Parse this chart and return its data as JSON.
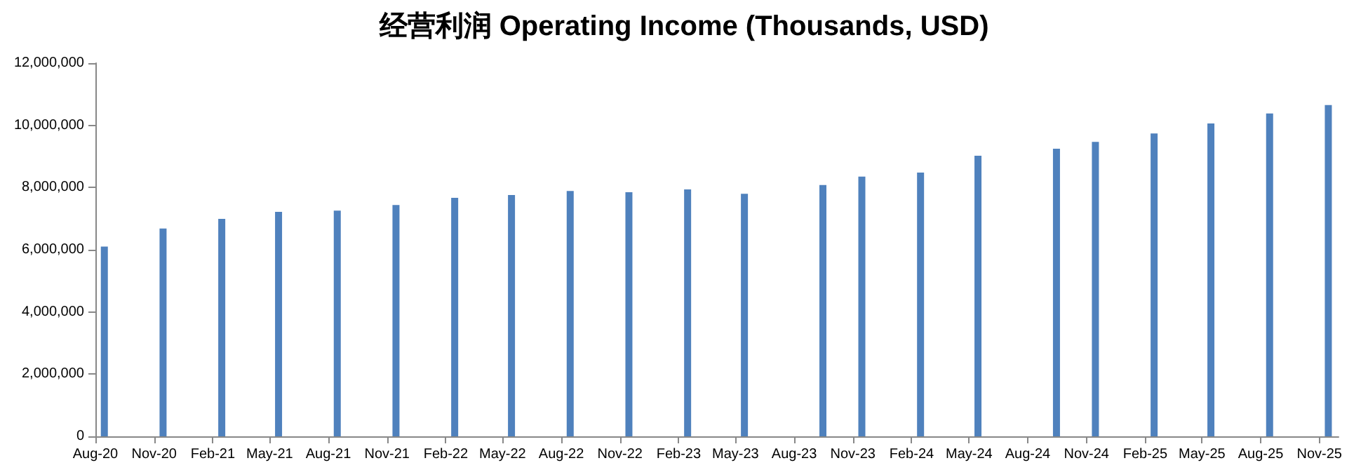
{
  "chart_data": {
    "type": "bar",
    "title": "经营利润 Operating Income (Thousands, USD)",
    "x": [
      "2020-08-15",
      "2020-11-15",
      "2021-02-15",
      "2021-05-15",
      "2021-08-15",
      "2021-11-15",
      "2022-02-15",
      "2022-05-15",
      "2022-08-15",
      "2022-11-15",
      "2023-02-15",
      "2023-05-15",
      "2023-09-15",
      "2023-11-15",
      "2024-02-15",
      "2024-05-15",
      "2024-09-15",
      "2024-11-15",
      "2025-02-15",
      "2025-05-15",
      "2025-08-15",
      "2025-11-15"
    ],
    "values": [
      6100000,
      6680000,
      6990000,
      7220000,
      7260000,
      7440000,
      7670000,
      7760000,
      7890000,
      7850000,
      7940000,
      7800000,
      8080000,
      8350000,
      8480000,
      9020000,
      9250000,
      9470000,
      9740000,
      10060000,
      10380000,
      10650000
    ],
    "color": "#4f81bd",
    "xlim": [
      "2020-08-01",
      "2025-12-01"
    ],
    "xticks": [
      {
        "value": "2020-08-01",
        "label": "Aug-20"
      },
      {
        "value": "2020-11-01",
        "label": "Nov-20"
      },
      {
        "value": "2021-02-01",
        "label": "Feb-21"
      },
      {
        "value": "2021-05-01",
        "label": "May-21"
      },
      {
        "value": "2021-08-01",
        "label": "Aug-21"
      },
      {
        "value": "2021-11-01",
        "label": "Nov-21"
      },
      {
        "value": "2022-02-01",
        "label": "Feb-22"
      },
      {
        "value": "2022-05-01",
        "label": "May-22"
      },
      {
        "value": "2022-08-01",
        "label": "Aug-22"
      },
      {
        "value": "2022-11-01",
        "label": "Nov-22"
      },
      {
        "value": "2023-02-01",
        "label": "Feb-23"
      },
      {
        "value": "2023-05-01",
        "label": "May-23"
      },
      {
        "value": "2023-08-01",
        "label": "Aug-23"
      },
      {
        "value": "2023-11-01",
        "label": "Nov-23"
      },
      {
        "value": "2024-02-01",
        "label": "Feb-24"
      },
      {
        "value": "2024-05-01",
        "label": "May-24"
      },
      {
        "value": "2024-08-01",
        "label": "Aug-24"
      },
      {
        "value": "2024-11-01",
        "label": "Nov-24"
      },
      {
        "value": "2025-02-01",
        "label": "Feb-25"
      },
      {
        "value": "2025-05-01",
        "label": "May-25"
      },
      {
        "value": "2025-08-01",
        "label": "Aug-25"
      },
      {
        "value": "2025-11-01",
        "label": "Nov-25"
      }
    ],
    "ylim": [
      0,
      12000000
    ],
    "yticks": [
      {
        "value": 0,
        "label": "0"
      },
      {
        "value": 2000000,
        "label": "2,000,000"
      },
      {
        "value": 4000000,
        "label": "4,000,000"
      },
      {
        "value": 6000000,
        "label": "6,000,000"
      },
      {
        "value": 8000000,
        "label": "8,000,000"
      },
      {
        "value": 10000000,
        "label": "10,000,000"
      },
      {
        "value": 12000000,
        "label": "12,000,000"
      }
    ],
    "grid": false
  }
}
